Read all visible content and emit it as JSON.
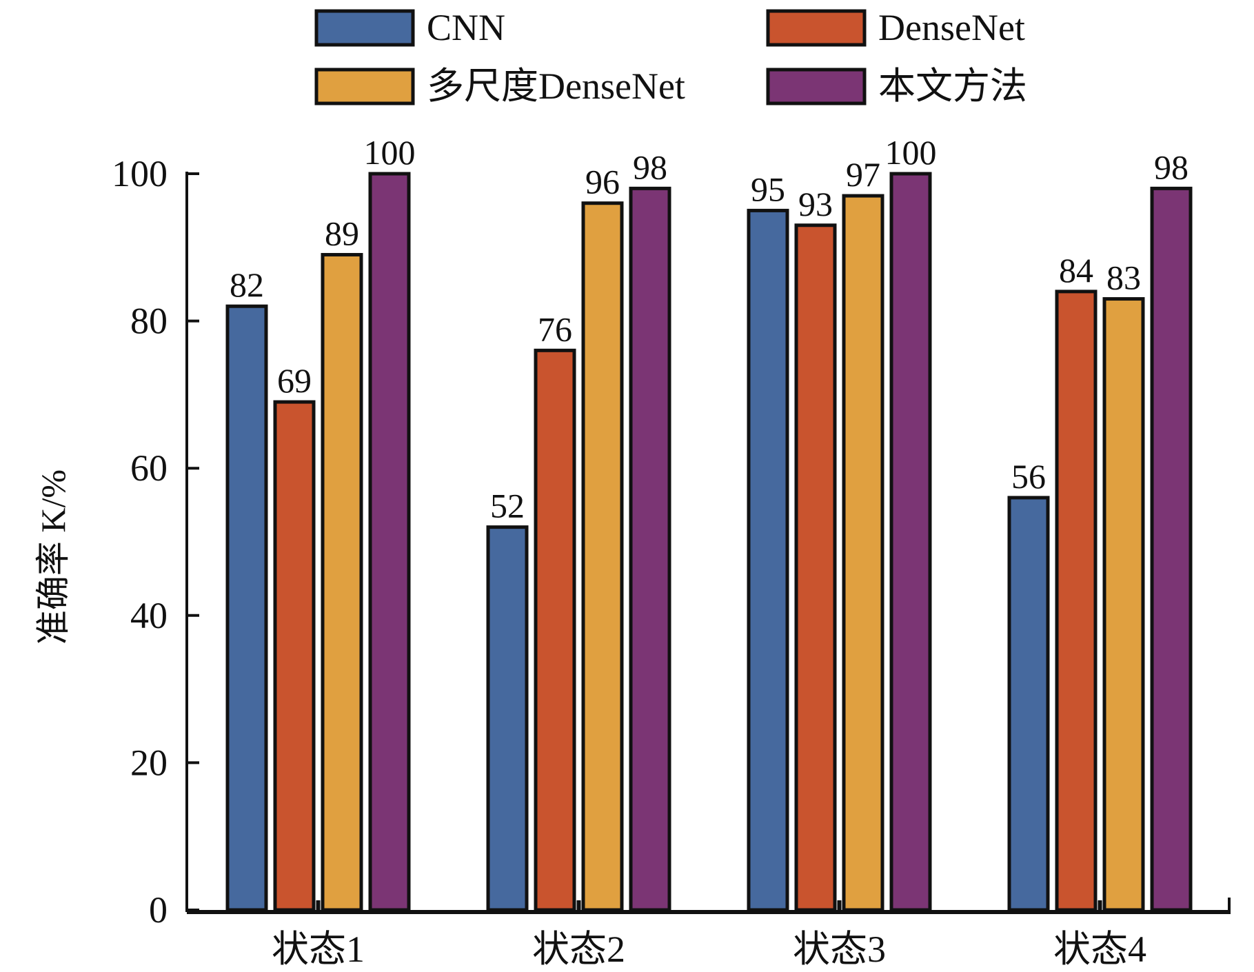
{
  "chart_data": {
    "type": "bar",
    "title": "",
    "xlabel": "",
    "ylabel": "准确率 K/%",
    "ylim": [
      0,
      100
    ],
    "yticks": [
      0,
      20,
      40,
      60,
      80,
      100
    ],
    "categories": [
      "状态1",
      "状态2",
      "状态3",
      "状态4"
    ],
    "legend_position": "top",
    "series": [
      {
        "name": "CNN",
        "color": "#46699e",
        "values": [
          82,
          52,
          95,
          56
        ]
      },
      {
        "name": "DenseNet",
        "color": "#c9542e",
        "values": [
          69,
          76,
          93,
          84
        ]
      },
      {
        "name": "多尺度DenseNet",
        "color": "#e0a040",
        "values": [
          89,
          96,
          97,
          83
        ]
      },
      {
        "name": "本文方法",
        "color": "#7b3574",
        "values": [
          100,
          98,
          100,
          98
        ]
      }
    ]
  }
}
